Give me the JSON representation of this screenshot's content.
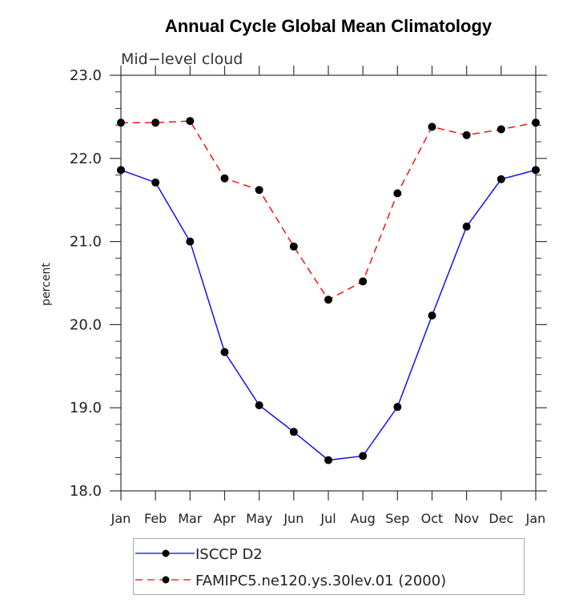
{
  "chart_data": {
    "type": "line",
    "title": "Annual Cycle Global Mean Climatology",
    "subtitle": "Mid−level cloud",
    "xlabel": "",
    "ylabel": "percent",
    "categories": [
      "Jan",
      "Feb",
      "Mar",
      "Apr",
      "May",
      "Jun",
      "Jul",
      "Aug",
      "Sep",
      "Oct",
      "Nov",
      "Dec",
      "Jan"
    ],
    "ylim": [
      18.0,
      23.0
    ],
    "yticks": [
      "18.0",
      "19.0",
      "20.0",
      "21.0",
      "22.0",
      "23.0"
    ],
    "y_minor_step": 0.2,
    "grid": false,
    "legend_position": "bottom",
    "series": [
      {
        "name": "ISCCP D2",
        "color": "#0000ff",
        "line_style": "solid",
        "marker_color": "#000000",
        "values": [
          21.86,
          21.71,
          21.0,
          19.67,
          19.03,
          18.71,
          18.37,
          18.42,
          19.01,
          20.11,
          21.18,
          21.75,
          21.86
        ]
      },
      {
        "name": "FAMIPC5.ne120.ys.30lev.01 (2000)",
        "color": "#ff0000",
        "line_style": "dashed",
        "marker_color": "#000000",
        "values": [
          22.43,
          22.43,
          22.45,
          21.76,
          21.62,
          20.94,
          20.3,
          20.52,
          21.58,
          22.38,
          22.28,
          22.35,
          22.43
        ]
      }
    ]
  }
}
